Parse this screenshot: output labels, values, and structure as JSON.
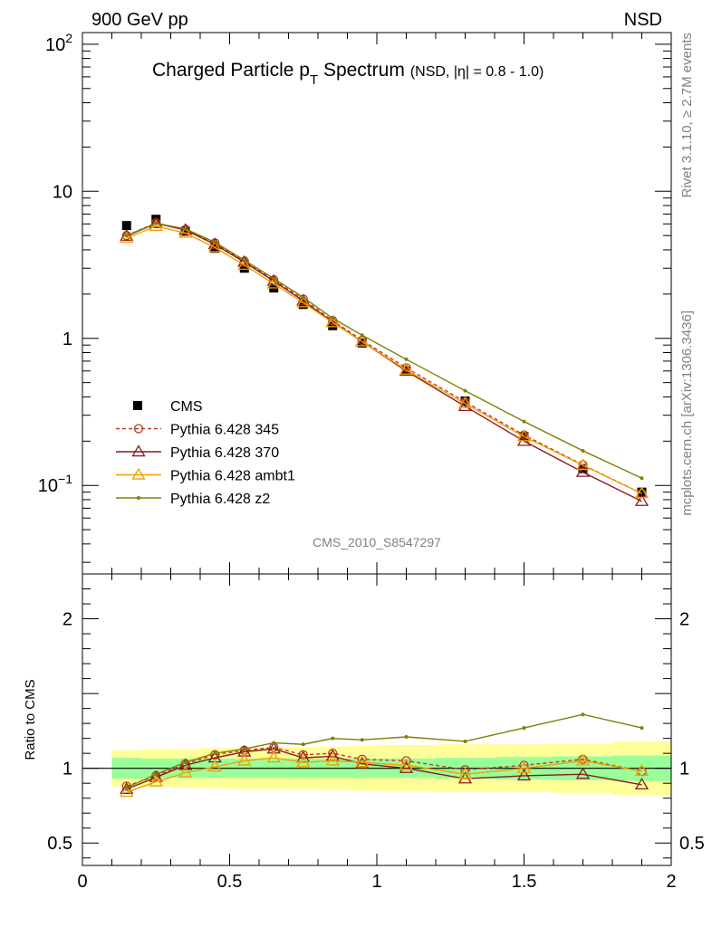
{
  "header": {
    "left_label": "900 GeV pp",
    "right_label": "NSD"
  },
  "side_labels": {
    "rivet": "Rivet 3.1.10, ≥ 2.7M events",
    "mcplots": "mcplots.cern.ch [arXiv:1306.3436]"
  },
  "chart_data": [
    {
      "type": "scatter",
      "panel": "main",
      "title_main": "Charged Particle p",
      "title_sub": "T",
      "title_rest": " Spectrum",
      "title_note": "(NSD, |η| = 0.8 - 1.0)",
      "watermark": "CMS_2010_S8547297",
      "xlim": [
        0,
        2
      ],
      "ylim": [
        0.025,
        120
      ],
      "yscale": "log",
      "y_ticks": [
        {
          "value": 100,
          "base": "10",
          "exp": "2"
        },
        {
          "value": 10,
          "base": "10",
          "exp": ""
        },
        {
          "value": 1,
          "base": "1",
          "exp": ""
        },
        {
          "value": 0.1,
          "base": "10",
          "exp": "−1"
        }
      ],
      "legend_position": "lower-left",
      "data": {
        "name": "CMS",
        "x": [
          0.15,
          0.25,
          0.35,
          0.45,
          0.55,
          0.65,
          0.75,
          0.85,
          0.95,
          1.1,
          1.3,
          1.5,
          1.7,
          1.9
        ],
        "y": [
          5.85,
          6.45,
          5.35,
          4.1,
          3.0,
          2.2,
          1.7,
          1.22,
          0.93,
          0.6,
          0.375,
          0.215,
          0.13,
          0.09
        ]
      },
      "series": [
        {
          "name": "Pythia 6.428 345",
          "color": "#c0392b",
          "style": "dashed",
          "marker": "circle",
          "x": [
            0.15,
            0.25,
            0.35,
            0.45,
            0.55,
            0.65,
            0.75,
            0.85,
            0.95,
            1.1,
            1.3,
            1.5,
            1.7,
            1.9
          ],
          "y": [
            5.0,
            6.1,
            5.5,
            4.45,
            3.35,
            2.5,
            1.85,
            1.32,
            0.97,
            0.63,
            0.37,
            0.22,
            0.138,
            0.088
          ]
        },
        {
          "name": "Pythia 6.428 370",
          "color": "#8b1a1a",
          "style": "solid",
          "marker": "triangle",
          "x": [
            0.15,
            0.25,
            0.35,
            0.45,
            0.55,
            0.65,
            0.75,
            0.85,
            0.95,
            1.1,
            1.3,
            1.5,
            1.7,
            1.9
          ],
          "y": [
            4.95,
            6.05,
            5.45,
            4.35,
            3.3,
            2.45,
            1.8,
            1.29,
            0.95,
            0.6,
            0.345,
            0.2,
            0.123,
            0.078
          ]
        },
        {
          "name": "Pythia 6.428 ambt1",
          "color": "#f0a000",
          "style": "solid",
          "marker": "triangle",
          "x": [
            0.15,
            0.25,
            0.35,
            0.45,
            0.55,
            0.65,
            0.75,
            0.85,
            0.95,
            1.1,
            1.3,
            1.5,
            1.7,
            1.9
          ],
          "y": [
            4.8,
            5.8,
            5.2,
            4.15,
            3.15,
            2.35,
            1.75,
            1.28,
            0.95,
            0.61,
            0.36,
            0.215,
            0.137,
            0.088
          ]
        },
        {
          "name": "Pythia 6.428 z2",
          "color": "#808000",
          "style": "solid",
          "marker": "dot",
          "x": [
            0.15,
            0.25,
            0.35,
            0.45,
            0.55,
            0.65,
            0.75,
            0.85,
            0.95,
            1.1,
            1.3,
            1.5,
            1.7,
            1.9
          ],
          "y": [
            5.0,
            6.05,
            5.55,
            4.5,
            3.4,
            2.55,
            1.9,
            1.37,
            1.05,
            0.72,
            0.44,
            0.272,
            0.172,
            0.112
          ]
        }
      ]
    },
    {
      "type": "line",
      "panel": "ratio",
      "ylabel": "Ratio to CMS",
      "xlim": [
        0,
        2
      ],
      "ylim": [
        0.35,
        2.3
      ],
      "x_ticks": [
        {
          "value": 0,
          "label": "0"
        },
        {
          "value": 0.5,
          "label": "0.5"
        },
        {
          "value": 1,
          "label": "1"
        },
        {
          "value": 1.5,
          "label": "1.5"
        },
        {
          "value": 2,
          "label": "2"
        }
      ],
      "y_ticks": [
        {
          "value": 2,
          "label": "2"
        },
        {
          "value": 1,
          "label": "1"
        },
        {
          "value": 0.5,
          "label": "0.5"
        }
      ],
      "bands": {
        "bins": [
          [
            0.1,
            0.2
          ],
          [
            0.2,
            0.3
          ],
          [
            0.3,
            0.4
          ],
          [
            0.4,
            0.5
          ],
          [
            0.5,
            0.6
          ],
          [
            0.6,
            0.7
          ],
          [
            0.7,
            0.8
          ],
          [
            0.8,
            0.9
          ],
          [
            0.9,
            1.0
          ],
          [
            1.0,
            1.2
          ],
          [
            1.2,
            1.4
          ],
          [
            1.4,
            1.6
          ],
          [
            1.6,
            1.8
          ],
          [
            1.8,
            2.0
          ]
        ],
        "inner_color": "#99ff99",
        "outer_color": "#ffff99",
        "inner_half_width": [
          0.07,
          0.065,
          0.065,
          0.065,
          0.065,
          0.065,
          0.065,
          0.065,
          0.065,
          0.065,
          0.07,
          0.075,
          0.08,
          0.085
        ],
        "outer_half_width": [
          0.12,
          0.125,
          0.13,
          0.135,
          0.14,
          0.14,
          0.14,
          0.145,
          0.15,
          0.155,
          0.16,
          0.16,
          0.165,
          0.18
        ]
      },
      "series": [
        {
          "name": "Pythia 6.428 345",
          "x": [
            0.15,
            0.25,
            0.35,
            0.45,
            0.55,
            0.65,
            0.75,
            0.85,
            0.95,
            1.1,
            1.3,
            1.5,
            1.7,
            1.9
          ],
          "y": [
            0.88,
            0.95,
            1.03,
            1.09,
            1.12,
            1.14,
            1.09,
            1.1,
            1.06,
            1.05,
            0.99,
            1.02,
            1.06,
            0.98
          ]
        },
        {
          "name": "Pythia 6.428 370",
          "x": [
            0.15,
            0.25,
            0.35,
            0.45,
            0.55,
            0.65,
            0.75,
            0.85,
            0.95,
            1.1,
            1.3,
            1.5,
            1.7,
            1.9
          ],
          "y": [
            0.86,
            0.94,
            1.02,
            1.07,
            1.11,
            1.13,
            1.07,
            1.08,
            1.03,
            1.0,
            0.93,
            0.95,
            0.96,
            0.89
          ]
        },
        {
          "name": "Pythia 6.428 ambt1",
          "x": [
            0.15,
            0.25,
            0.35,
            0.45,
            0.55,
            0.65,
            0.75,
            0.85,
            0.95,
            1.1,
            1.3,
            1.5,
            1.7,
            1.9
          ],
          "y": [
            0.84,
            0.91,
            0.97,
            1.01,
            1.05,
            1.07,
            1.04,
            1.05,
            1.04,
            1.02,
            0.96,
            1.0,
            1.05,
            0.98
          ]
        },
        {
          "name": "Pythia 6.428 z2",
          "x": [
            0.15,
            0.25,
            0.35,
            0.45,
            0.55,
            0.65,
            0.75,
            0.85,
            0.95,
            1.1,
            1.3,
            1.5,
            1.7,
            1.9
          ],
          "y": [
            0.87,
            0.96,
            1.04,
            1.1,
            1.13,
            1.17,
            1.16,
            1.2,
            1.19,
            1.21,
            1.18,
            1.27,
            1.36,
            1.27
          ]
        }
      ]
    }
  ]
}
